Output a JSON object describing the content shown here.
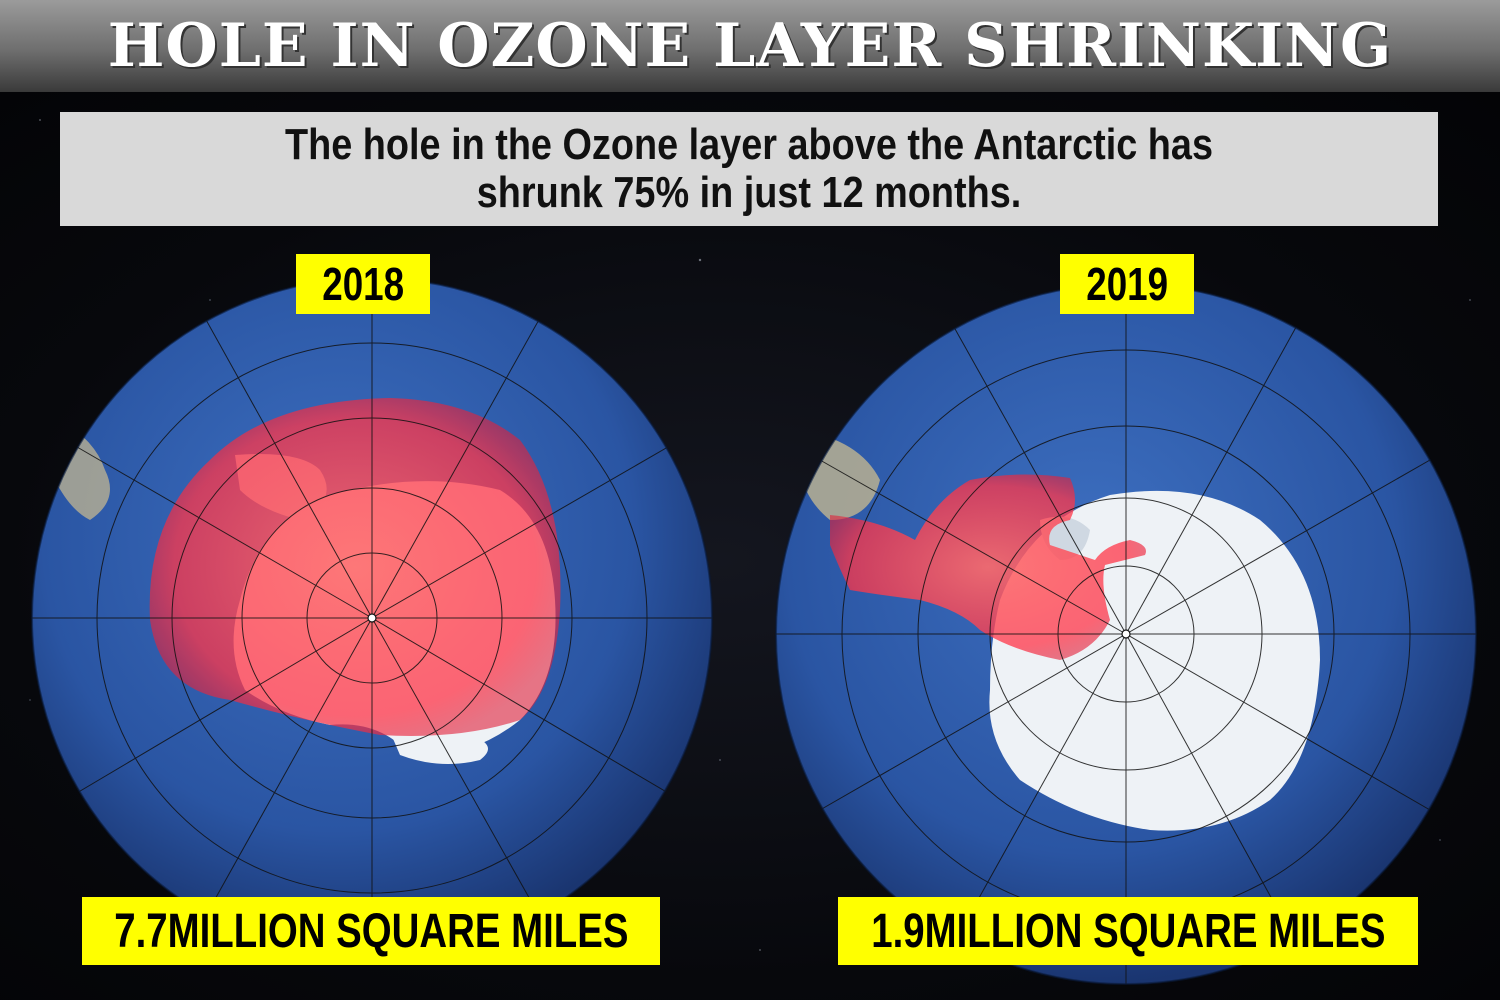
{
  "banner": {
    "title": "HOLE IN OZONE LAYER SHRINKING"
  },
  "subtitle": {
    "line1": "The hole in the Ozone layer above the Antarctic has",
    "line2": "shrunk 75% in just 12 months."
  },
  "panels": [
    {
      "year": "2018",
      "area_label": "7.7MILLION SQUARE MILES"
    },
    {
      "year": "2019",
      "area_label": "1.9MILLION SQUARE MILES"
    }
  ],
  "colors": {
    "ocean": "#2f5aa8",
    "ice": "#eef2f6",
    "ozone_hole": "#ff3b4f",
    "label_bg": "#ffff00"
  }
}
